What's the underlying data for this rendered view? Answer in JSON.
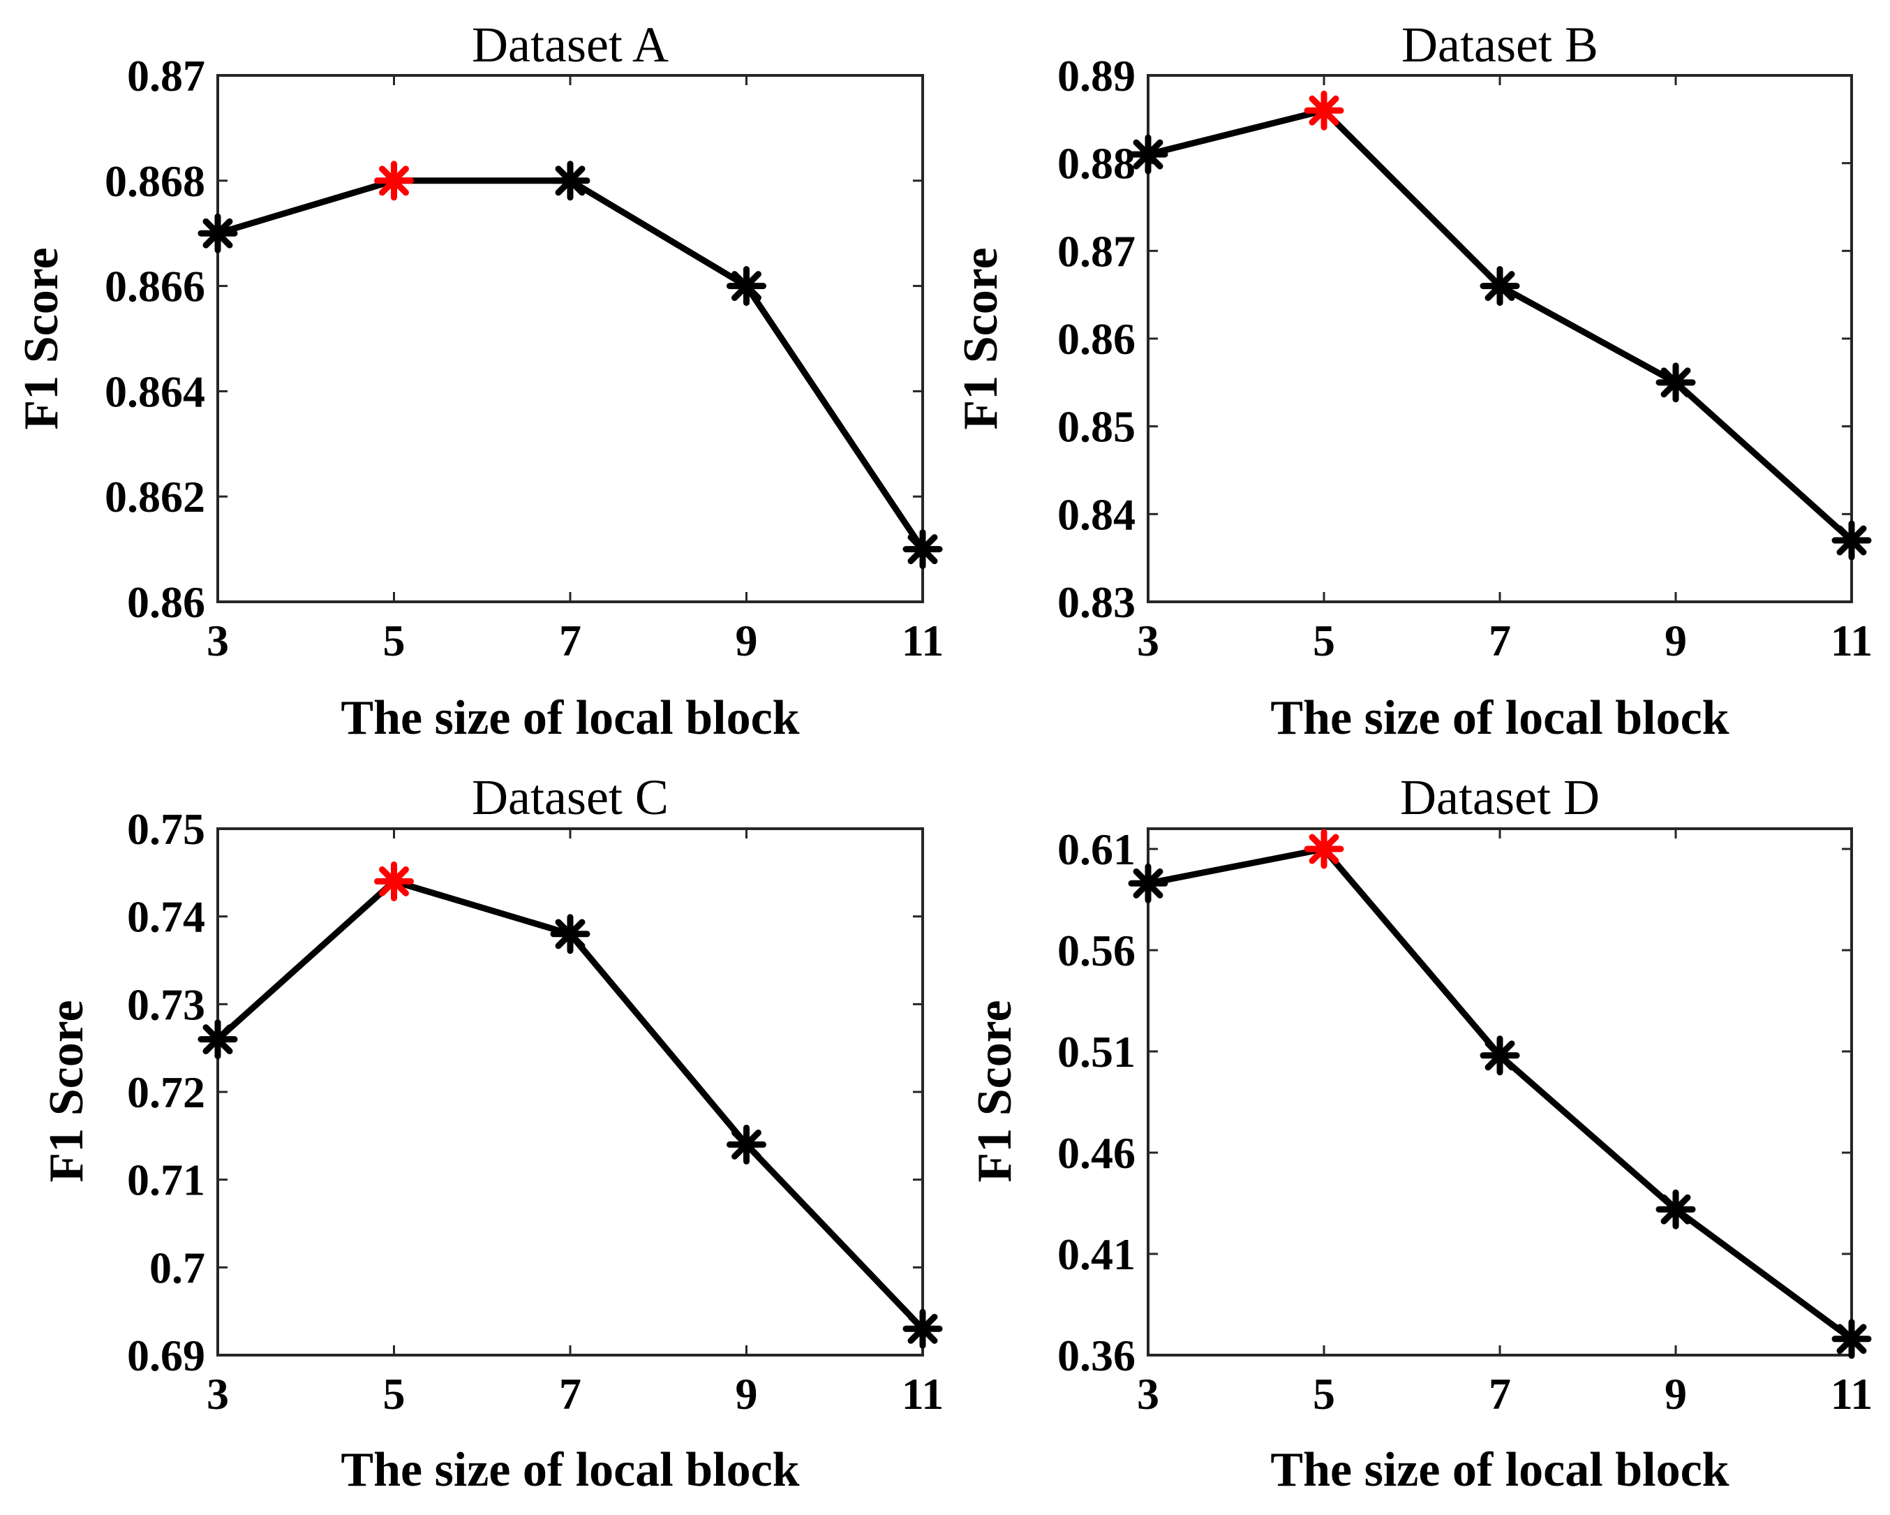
{
  "chart_data": [
    {
      "type": "line",
      "title": "Dataset A",
      "xlabel": "The size of local block",
      "ylabel": "F1 Score",
      "x": [
        3,
        5,
        7,
        9,
        11
      ],
      "y": [
        0.867,
        0.868,
        0.868,
        0.866,
        0.861
      ],
      "highlight_index": 1,
      "xlim": [
        3,
        11
      ],
      "ylim": [
        0.86,
        0.87
      ],
      "xticks": [
        3,
        5,
        7,
        9,
        11
      ],
      "xtick_labels": [
        "3",
        "5",
        "7",
        "9",
        "11"
      ],
      "yticks": [
        0.86,
        0.862,
        0.864,
        0.866,
        0.868,
        0.87
      ],
      "ytick_labels": [
        "0.86",
        "0.862",
        "0.864",
        "0.866",
        "0.868",
        "0.87"
      ],
      "line_color": "#000000",
      "marker_color": "#000000",
      "highlight_color": "#ff0000",
      "grid": false
    },
    {
      "type": "line",
      "title": "Dataset B",
      "xlabel": "The size of local block",
      "ylabel": "F1 Score",
      "x": [
        3,
        5,
        7,
        9,
        11
      ],
      "y": [
        0.881,
        0.886,
        0.866,
        0.855,
        0.837
      ],
      "highlight_index": 1,
      "xlim": [
        3,
        11
      ],
      "ylim": [
        0.83,
        0.89
      ],
      "xticks": [
        3,
        5,
        7,
        9,
        11
      ],
      "xtick_labels": [
        "3",
        "5",
        "7",
        "9",
        "11"
      ],
      "yticks": [
        0.83,
        0.84,
        0.85,
        0.86,
        0.87,
        0.88,
        0.89
      ],
      "ytick_labels": [
        "0.83",
        "0.84",
        "0.85",
        "0.86",
        "0.87",
        "0.88",
        "0.89"
      ],
      "line_color": "#000000",
      "marker_color": "#000000",
      "highlight_color": "#ff0000",
      "grid": false
    },
    {
      "type": "line",
      "title": "Dataset C",
      "xlabel": "The size of local block",
      "ylabel": "F1 Score",
      "x": [
        3,
        5,
        7,
        9,
        11
      ],
      "y": [
        0.726,
        0.744,
        0.738,
        0.714,
        0.693
      ],
      "highlight_index": 1,
      "xlim": [
        3,
        11
      ],
      "ylim": [
        0.69,
        0.75
      ],
      "xticks": [
        3,
        5,
        7,
        9,
        11
      ],
      "xtick_labels": [
        "3",
        "5",
        "7",
        "9",
        "11"
      ],
      "yticks": [
        0.69,
        0.7,
        0.71,
        0.72,
        0.73,
        0.74,
        0.75
      ],
      "ytick_labels": [
        "0.69",
        "0.7",
        "0.71",
        "0.72",
        "0.73",
        "0.74",
        "0.75"
      ],
      "line_color": "#000000",
      "marker_color": "#000000",
      "highlight_color": "#ff0000",
      "grid": false
    },
    {
      "type": "line",
      "title": "Dataset D",
      "xlabel": "The size of local block",
      "ylabel": "F1 Score",
      "x": [
        3,
        5,
        7,
        9,
        11
      ],
      "y": [
        0.593,
        0.61,
        0.508,
        0.432,
        0.368
      ],
      "highlight_index": 1,
      "xlim": [
        3,
        11
      ],
      "ylim": [
        0.36,
        0.62
      ],
      "xticks": [
        3,
        5,
        7,
        9,
        11
      ],
      "xtick_labels": [
        "3",
        "5",
        "7",
        "9",
        "11"
      ],
      "yticks": [
        0.36,
        0.41,
        0.46,
        0.51,
        0.56,
        0.61
      ],
      "ytick_labels": [
        "0.36",
        "0.41",
        "0.46",
        "0.51",
        "0.56",
        "0.61"
      ],
      "line_color": "#000000",
      "marker_color": "#000000",
      "highlight_color": "#ff0000",
      "grid": false
    }
  ]
}
